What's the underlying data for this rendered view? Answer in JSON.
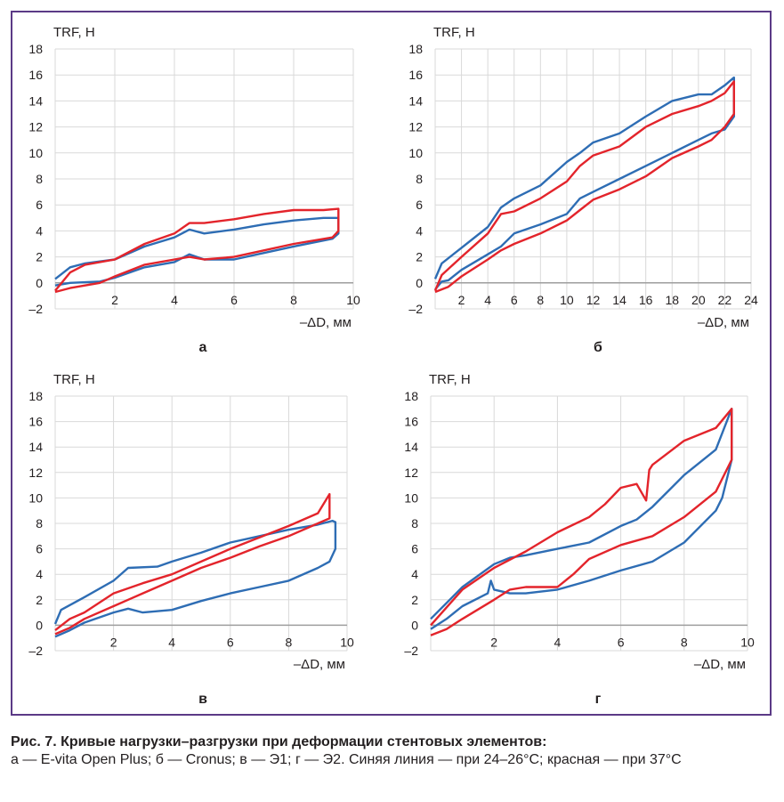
{
  "colors": {
    "blue": "#2e6db4",
    "red": "#e3242b",
    "grid": "#d9d9d9",
    "frame": "#5b3a86"
  },
  "chart_data": [
    {
      "type": "line",
      "label": "а",
      "ylabel": "TRF, Н",
      "xlabel": "–ΔD, мм",
      "xlim": [
        0,
        10
      ],
      "ylim": [
        -2,
        18
      ],
      "xticks": [
        2,
        4,
        6,
        8,
        10
      ],
      "yticks": [
        -2,
        0,
        2,
        4,
        6,
        8,
        10,
        12,
        14,
        16,
        18
      ],
      "grid": true,
      "series": [
        {
          "color": "blue",
          "x": [
            0.0,
            0.5,
            1.0,
            2.0,
            3.0,
            4.0,
            4.5,
            5.0,
            6.0,
            7.0,
            8.0,
            9.0,
            9.5,
            9.5,
            9.3,
            8.0,
            7.0,
            6.0,
            5.0,
            4.5,
            4.0,
            3.0,
            2.0,
            1.5,
            1.0,
            0.5,
            0.0
          ],
          "y": [
            0.3,
            1.2,
            1.5,
            1.8,
            2.8,
            3.5,
            4.1,
            3.8,
            4.1,
            4.5,
            4.8,
            5.0,
            5.0,
            3.8,
            3.4,
            2.8,
            2.3,
            1.8,
            1.8,
            2.2,
            1.6,
            1.2,
            0.4,
            0.1,
            0.05,
            0.0,
            -0.2
          ]
        },
        {
          "color": "red",
          "x": [
            0.0,
            0.5,
            1.0,
            2.0,
            3.0,
            4.0,
            4.5,
            5.0,
            6.0,
            7.0,
            8.0,
            9.0,
            9.5,
            9.5,
            9.3,
            8.0,
            7.0,
            6.0,
            5.0,
            4.5,
            4.0,
            3.0,
            2.0,
            1.5,
            1.0,
            0.5,
            0.0
          ],
          "y": [
            -0.6,
            0.8,
            1.4,
            1.8,
            3.0,
            3.8,
            4.6,
            4.6,
            4.9,
            5.3,
            5.6,
            5.6,
            5.7,
            4.0,
            3.5,
            3.0,
            2.5,
            2.0,
            1.8,
            2.0,
            1.8,
            1.4,
            0.5,
            0.0,
            -0.2,
            -0.4,
            -0.7
          ]
        }
      ]
    },
    {
      "type": "line",
      "label": "б",
      "ylabel": "TRF, Н",
      "xlabel": "–ΔD, мм",
      "xlim": [
        0,
        24
      ],
      "ylim": [
        -2,
        18
      ],
      "xticks": [
        2,
        4,
        6,
        8,
        10,
        12,
        14,
        16,
        18,
        20,
        22,
        24
      ],
      "yticks": [
        -2,
        0,
        2,
        4,
        6,
        8,
        10,
        12,
        14,
        16,
        18
      ],
      "grid": true,
      "series": [
        {
          "color": "blue",
          "x": [
            0.0,
            0.5,
            2.0,
            4.0,
            5.0,
            6.0,
            8.0,
            10.0,
            11.0,
            12.0,
            14.0,
            16.0,
            18.0,
            20.0,
            21.0,
            22.0,
            22.7,
            22.7,
            22.0,
            21.0,
            20.0,
            18.0,
            16.0,
            14.0,
            12.0,
            11.0,
            10.0,
            8.0,
            6.0,
            5.0,
            4.0,
            2.0,
            1.0,
            0.5,
            0.0
          ],
          "y": [
            0.3,
            1.5,
            2.7,
            4.3,
            5.8,
            6.5,
            7.5,
            9.3,
            10.0,
            10.8,
            11.5,
            12.8,
            14.0,
            14.5,
            14.5,
            15.2,
            15.8,
            12.8,
            11.8,
            11.5,
            11.0,
            10.0,
            9.0,
            8.0,
            7.0,
            6.5,
            5.3,
            4.5,
            3.8,
            2.8,
            2.2,
            1.0,
            0.2,
            0.1,
            -0.5
          ]
        },
        {
          "color": "red",
          "x": [
            0.0,
            0.5,
            2.0,
            4.0,
            5.0,
            6.0,
            8.0,
            10.0,
            11.0,
            12.0,
            14.0,
            16.0,
            18.0,
            20.0,
            21.0,
            22.0,
            22.7,
            22.7,
            22.0,
            21.0,
            20.0,
            18.0,
            16.0,
            14.0,
            12.0,
            11.0,
            10.0,
            8.0,
            6.0,
            5.0,
            4.0,
            2.0,
            1.0,
            0.5,
            0.0
          ],
          "y": [
            -0.6,
            0.6,
            2.0,
            3.8,
            5.3,
            5.5,
            6.5,
            7.8,
            9.0,
            9.8,
            10.5,
            12.0,
            13.0,
            13.6,
            14.0,
            14.6,
            15.5,
            13.0,
            12.0,
            11.0,
            10.5,
            9.6,
            8.2,
            7.2,
            6.4,
            5.6,
            4.8,
            3.8,
            3.0,
            2.5,
            1.8,
            0.5,
            -0.3,
            -0.5,
            -0.7
          ]
        }
      ]
    },
    {
      "type": "line",
      "label": "в",
      "ylabel": "TRF, Н",
      "xlabel": "–ΔD, мм",
      "xlim": [
        0,
        10
      ],
      "ylim": [
        -2,
        18
      ],
      "xticks": [
        2,
        4,
        6,
        8,
        10
      ],
      "yticks": [
        -2,
        0,
        2,
        4,
        6,
        8,
        10,
        12,
        14,
        16,
        18
      ],
      "grid": true,
      "series": [
        {
          "color": "blue",
          "x": [
            0.0,
            0.2,
            1.0,
            2.0,
            2.5,
            3.5,
            4.0,
            5.0,
            6.0,
            7.0,
            8.0,
            9.0,
            9.5,
            9.6,
            9.6,
            9.4,
            9.0,
            8.0,
            7.0,
            6.0,
            5.0,
            4.0,
            3.0,
            2.5,
            2.0,
            1.0,
            0.5,
            0.0
          ],
          "y": [
            0.1,
            1.2,
            2.2,
            3.5,
            4.5,
            4.6,
            5.0,
            5.7,
            6.5,
            7.0,
            7.5,
            7.9,
            8.2,
            8.1,
            6.0,
            5.0,
            4.5,
            3.5,
            3.0,
            2.5,
            1.9,
            1.2,
            1.0,
            1.3,
            1.0,
            0.2,
            -0.4,
            -0.9
          ]
        },
        {
          "color": "red",
          "x": [
            0.0,
            0.5,
            1.0,
            2.0,
            3.0,
            4.0,
            5.0,
            6.0,
            7.0,
            8.0,
            9.0,
            9.4,
            9.4,
            9.0,
            8.0,
            7.0,
            6.0,
            5.0,
            4.0,
            3.0,
            2.5,
            2.0,
            1.0,
            0.5,
            0.0
          ],
          "y": [
            -0.4,
            0.5,
            1.0,
            2.5,
            3.3,
            4.0,
            5.0,
            6.0,
            6.9,
            7.8,
            8.8,
            10.3,
            8.4,
            8.0,
            7.0,
            6.2,
            5.3,
            4.5,
            3.5,
            2.5,
            2.0,
            1.5,
            0.5,
            -0.2,
            -0.7
          ]
        }
      ]
    },
    {
      "type": "line",
      "label": "г",
      "ylabel": "TRF, Н",
      "xlabel": "–ΔD, мм",
      "xlim": [
        0,
        10
      ],
      "ylim": [
        -2,
        18
      ],
      "xticks": [
        2,
        4,
        6,
        8,
        10
      ],
      "yticks": [
        -2,
        0,
        2,
        4,
        6,
        8,
        10,
        12,
        14,
        16,
        18
      ],
      "grid": true,
      "series": [
        {
          "color": "blue",
          "x": [
            0.0,
            1.0,
            2.0,
            2.5,
            3.0,
            4.0,
            5.0,
            6.0,
            6.5,
            7.0,
            8.0,
            9.0,
            9.5,
            9.5,
            9.2,
            9.0,
            8.0,
            7.0,
            6.0,
            5.0,
            4.0,
            3.0,
            2.5,
            2.0,
            1.9,
            1.8,
            1.0,
            0.5,
            0.0
          ],
          "y": [
            0.5,
            3.0,
            4.8,
            5.3,
            5.5,
            6.0,
            6.5,
            7.8,
            8.3,
            9.3,
            11.8,
            13.8,
            17.0,
            13.0,
            10.0,
            9.0,
            6.5,
            5.0,
            4.3,
            3.5,
            2.8,
            2.5,
            2.5,
            2.8,
            3.5,
            2.5,
            1.5,
            0.5,
            -0.3
          ]
        },
        {
          "color": "red",
          "x": [
            0.0,
            1.0,
            2.0,
            3.0,
            4.0,
            5.0,
            5.5,
            6.0,
            6.5,
            6.8,
            6.9,
            7.0,
            8.0,
            9.0,
            9.5,
            9.5,
            9.0,
            8.0,
            7.0,
            6.0,
            5.0,
            4.5,
            4.0,
            3.0,
            2.5,
            2.0,
            1.0,
            0.5,
            0.0
          ],
          "y": [
            0.0,
            2.8,
            4.5,
            5.8,
            7.3,
            8.5,
            9.5,
            10.8,
            11.1,
            9.8,
            12.2,
            12.6,
            14.5,
            15.5,
            17.0,
            13.0,
            10.5,
            8.5,
            7.0,
            6.3,
            5.2,
            4.0,
            3.0,
            3.0,
            2.8,
            2.0,
            0.5,
            -0.3,
            -0.8
          ]
        }
      ]
    }
  ],
  "caption": {
    "title": "Рис. 7. Кривые нагрузки–разгрузки при деформации стентовых элементов:",
    "body": "а — E-vita Open Plus; б — Cronus; в — Э1; г — Э2. Синяя линия — при 24–26°C; красная — при 37°C"
  }
}
